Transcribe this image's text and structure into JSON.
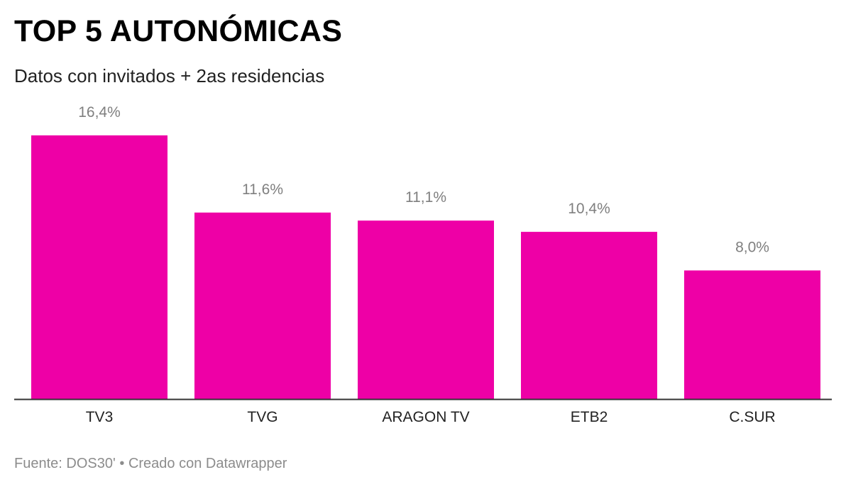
{
  "header": {
    "title": "TOP 5 AUTONÓMICAS",
    "subtitle": "Datos con invitados + 2as residencias"
  },
  "footer": {
    "source": "Fuente: DOS30'",
    "separator": "•",
    "credit": "Creado con Datawrapper"
  },
  "colors": {
    "bar": "#ee00a6",
    "baseline": "#333333"
  },
  "chart_data": {
    "type": "bar",
    "title": "TOP 5 AUTONÓMICAS",
    "subtitle": "Datos con invitados + 2as residencias",
    "xlabel": "",
    "ylabel": "",
    "categories": [
      "TV3",
      "TVG",
      "ARAGON TV",
      "ETB2",
      "C.SUR"
    ],
    "values": [
      16.4,
      11.6,
      11.1,
      10.4,
      8.0
    ],
    "value_labels": [
      "16,4%",
      "11,6%",
      "11,1%",
      "10,4%",
      "8,0%"
    ],
    "unit": "%",
    "ylim": [
      0,
      16.4
    ],
    "grid": false,
    "legend": "none"
  }
}
